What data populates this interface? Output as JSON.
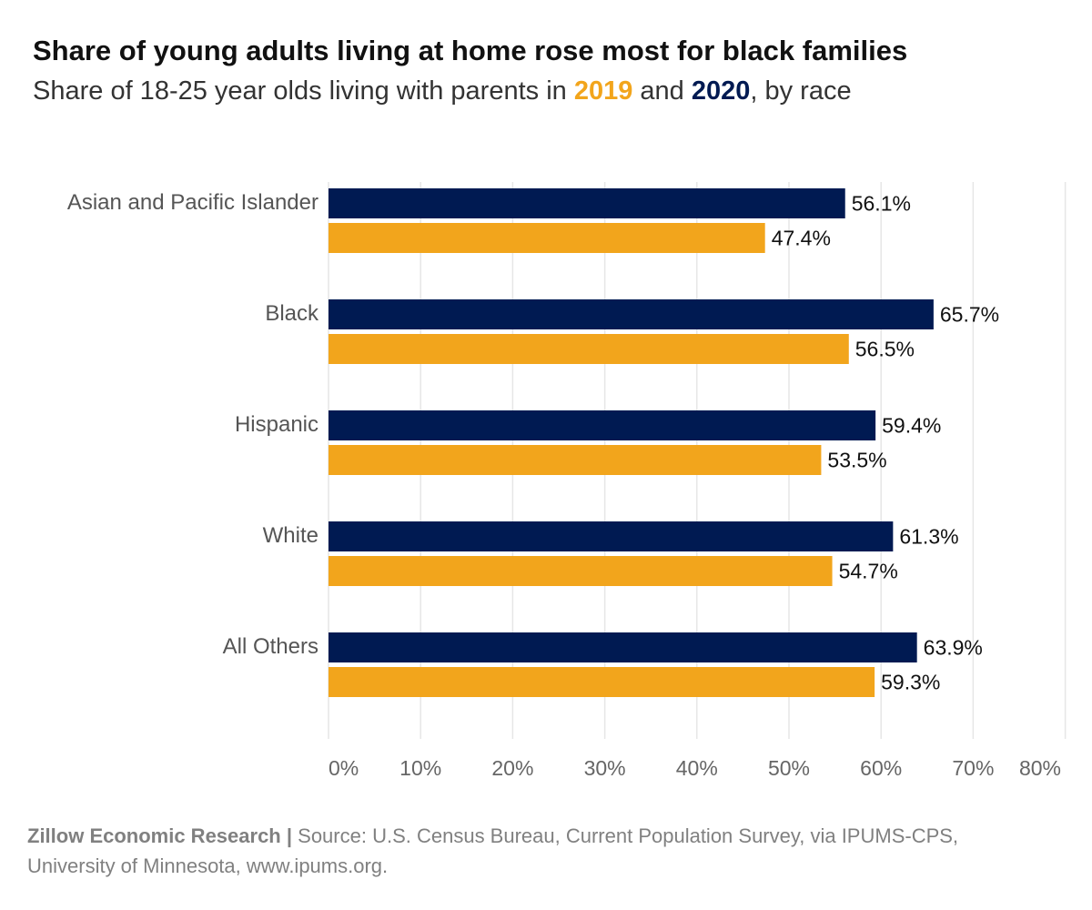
{
  "title": "Share of young adults living at home rose most for black families",
  "subtitle": {
    "prefix": "Share of 18-25 year olds living with parents in ",
    "year1": "2019",
    "middle": " and ",
    "year2": "2020",
    "suffix": ", by race"
  },
  "colors": {
    "series_2020": "#001a52",
    "series_2019": "#f2a51c",
    "gridline": "#e6e6e6",
    "category_label": "#555555",
    "tick_label": "#666666",
    "value_label": "#111111"
  },
  "chart_data": {
    "type": "bar",
    "orientation": "horizontal",
    "title": "Share of young adults living at home rose most for black families",
    "subtitle": "Share of 18-25 year olds living with parents in 2019 and 2020, by race",
    "categories": [
      "Asian and Pacific Islander",
      "Black",
      "Hispanic",
      "White",
      "All Others"
    ],
    "series": [
      {
        "name": "2020",
        "color": "#001a52",
        "values": [
          56.1,
          65.7,
          59.4,
          61.3,
          63.9
        ]
      },
      {
        "name": "2019",
        "color": "#f2a51c",
        "values": [
          47.4,
          56.5,
          53.5,
          54.7,
          59.3
        ]
      }
    ],
    "value_labels": [
      [
        "56.1%",
        "65.7%",
        "59.4%",
        "61.3%",
        "63.9%"
      ],
      [
        "47.4%",
        "56.5%",
        "53.5%",
        "54.7%",
        "59.3%"
      ]
    ],
    "xlim": [
      0,
      80
    ],
    "xticks": [
      0,
      10,
      20,
      30,
      40,
      50,
      60,
      70,
      80
    ],
    "xtick_labels": [
      "0%",
      "10%",
      "20%",
      "30%",
      "40%",
      "50%",
      "60%",
      "70%",
      "80%"
    ],
    "xlabel": "",
    "ylabel": "",
    "grid": true,
    "legend": "in subtitle"
  },
  "footer": {
    "brand": "Zillow Economic Research",
    "separator": " | ",
    "source": "Source:  U.S. Census Bureau, Current Population Survey, via IPUMS-CPS, University of Minnesota, www.ipums.org."
  }
}
